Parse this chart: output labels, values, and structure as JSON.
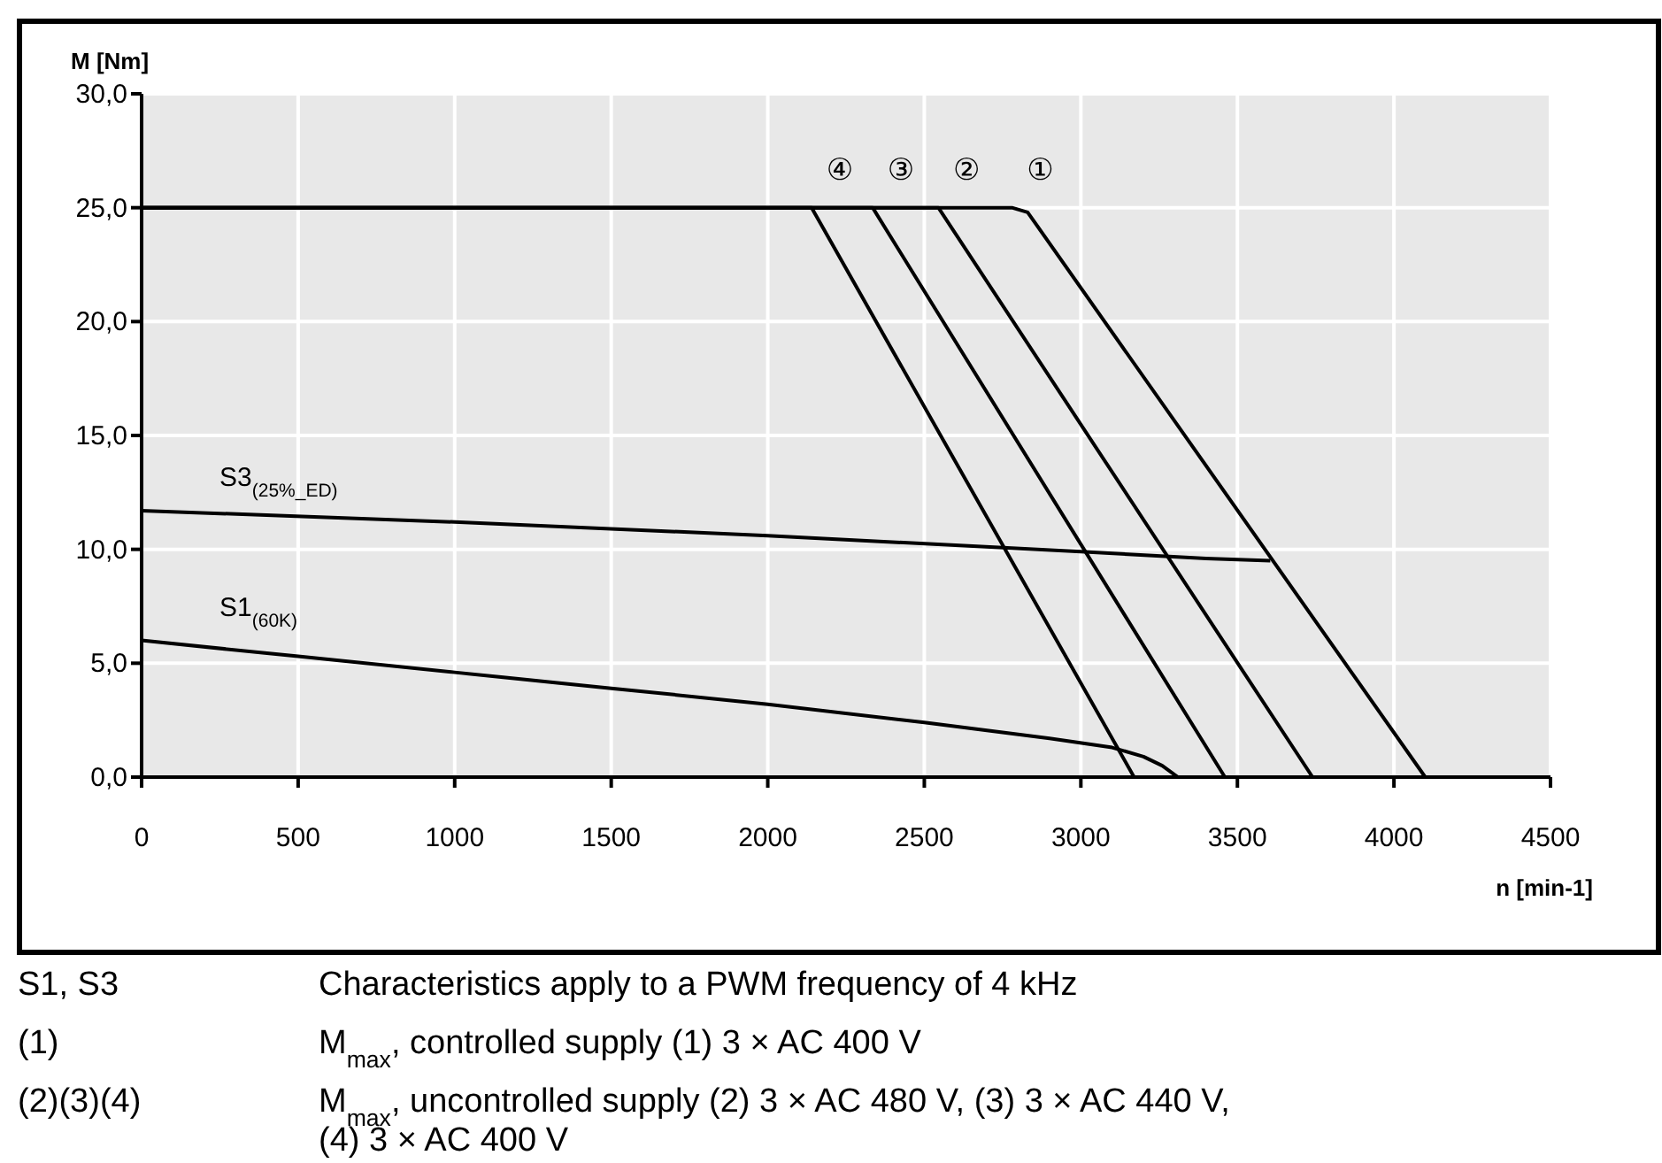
{
  "chart_data": {
    "type": "line",
    "xlabel": "n [min-1]",
    "ylabel": "M [Nm]",
    "xlim": [
      0,
      4500
    ],
    "xticks": [
      0,
      500,
      1000,
      1500,
      2000,
      2500,
      3000,
      3500,
      4000,
      4500
    ],
    "ylim": [
      0,
      30
    ],
    "yticks": [
      {
        "value": 0,
        "label": "0,0"
      },
      {
        "value": 5,
        "label": "5,0"
      },
      {
        "value": 10,
        "label": "10,0"
      },
      {
        "value": 15,
        "label": "15,0"
      },
      {
        "value": 20,
        "label": "20,0"
      },
      {
        "value": 25,
        "label": "25,0"
      },
      {
        "value": 30,
        "label": "30,0"
      }
    ],
    "grid": true,
    "marker": "none",
    "line_style": "solid",
    "series": [
      {
        "name": "①",
        "color": "#000000",
        "x": [
          0,
          2780,
          2830,
          4100
        ],
        "values": [
          25,
          25,
          24.8,
          0
        ]
      },
      {
        "name": "②",
        "color": "#000000",
        "x": [
          0,
          2545,
          3740
        ],
        "values": [
          25,
          25,
          0
        ]
      },
      {
        "name": "③",
        "color": "#000000",
        "x": [
          0,
          2335,
          3460
        ],
        "values": [
          25,
          25,
          0
        ]
      },
      {
        "name": "④",
        "color": "#000000",
        "x": [
          0,
          2140,
          3170
        ],
        "values": [
          25,
          25,
          0
        ]
      },
      {
        "name": "S3$_{(25%_ED)}$",
        "color": "#000000",
        "x": [
          0,
          1000,
          2000,
          3000,
          3400,
          3605
        ],
        "values": [
          11.7,
          11.2,
          10.6,
          9.9,
          9.6,
          9.5
        ]
      },
      {
        "name": "S1$_{(60K)}$",
        "color": "#000000",
        "x": [
          0,
          500,
          1000,
          1500,
          2000,
          2500,
          2900,
          3100,
          3200,
          3260,
          3290,
          3310
        ],
        "values": [
          6.0,
          5.3,
          4.6,
          3.9,
          3.2,
          2.4,
          1.7,
          1.3,
          0.9,
          0.5,
          0.2,
          0
        ]
      }
    ],
    "annotations": [
      "S1, S3",
      "Characteristics apply to a PWM frequency of 4 kHz",
      "(1)",
      "M$_{max}$, controlled supply (1) 3 × AC 400 V",
      "(2)(3)(4)",
      "M$_{max}$, uncontrolled supply (2) 3 × AC 480 V, (3) 3 × AC 440 V, (4) 3 × AC 400 V"
    ]
  }
}
